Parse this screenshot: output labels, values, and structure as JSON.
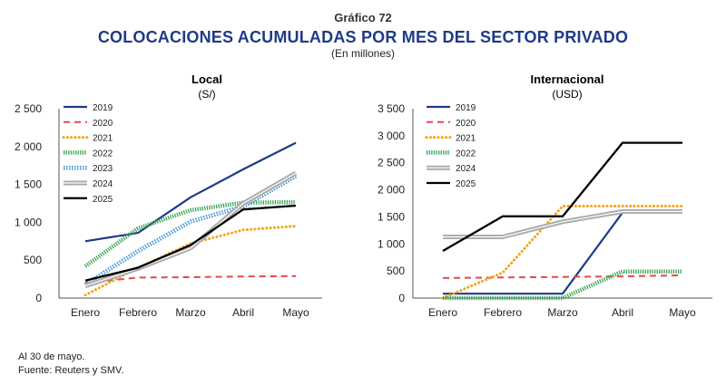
{
  "figure": {
    "label": "Gráfico 72",
    "title": "COLOCACIONES ACUMULADAS POR MES DEL SECTOR PRIVADO",
    "subtitle": "(En millones)",
    "note": "Al 30 de mayo.",
    "source": "Fuente: Reuters y SMV."
  },
  "colors": {
    "2019": "#1f3a8a",
    "2020": "#e8474c",
    "2021": "#f5a31a",
    "2022": "#3aa655",
    "2023": "#3b8fd9",
    "2024": "#a9a9a9",
    "2025": "#000000"
  },
  "chart_data": [
    {
      "type": "line",
      "title": "Local",
      "unit": "(S/)",
      "categories": [
        "Enero",
        "Febrero",
        "Marzo",
        "Abril",
        "Mayo"
      ],
      "ylim": [
        0,
        2500
      ],
      "yticks": [
        0,
        500,
        1000,
        1500,
        2000,
        2500
      ],
      "ytick_labels": [
        "0",
        "500",
        "1 000",
        "1 500",
        "2 000",
        "2 500"
      ],
      "grid": false,
      "legend": "top-left",
      "series": [
        {
          "name": "2019",
          "values": [
            750,
            860,
            1330,
            1700,
            2050
          ]
        },
        {
          "name": "2020",
          "values": [
            200,
            270,
            275,
            285,
            290
          ]
        },
        {
          "name": "2021",
          "values": [
            40,
            400,
            720,
            900,
            950
          ]
        },
        {
          "name": "2022",
          "values": [
            420,
            920,
            1160,
            1260,
            1265
          ]
        },
        {
          "name": "2023",
          "values": [
            180,
            620,
            1010,
            1210,
            1610
          ]
        },
        {
          "name": "2024",
          "values": [
            160,
            390,
            660,
            1250,
            1650
          ]
        },
        {
          "name": "2025",
          "values": [
            230,
            400,
            700,
            1170,
            1220
          ]
        }
      ]
    },
    {
      "type": "line",
      "title": "Internacional",
      "unit": "(USD)",
      "categories": [
        "Enero",
        "Febrero",
        "Marzo",
        "Abril",
        "Mayo"
      ],
      "ylim": [
        0,
        3500
      ],
      "yticks": [
        0,
        500,
        1000,
        1500,
        2000,
        2500,
        3000,
        3500
      ],
      "ytick_labels": [
        "0",
        "500",
        "1 000",
        "1 500",
        "2 000",
        "2 500",
        "3 000",
        "3 500"
      ],
      "grid": false,
      "legend": "top-left",
      "series": [
        {
          "name": "2019",
          "values": [
            80,
            80,
            80,
            1580,
            1580
          ]
        },
        {
          "name": "2020",
          "values": [
            370,
            380,
            390,
            400,
            420
          ]
        },
        {
          "name": "2021",
          "values": [
            0,
            470,
            1700,
            1700,
            1700
          ]
        },
        {
          "name": "2022",
          "values": [
            0,
            0,
            0,
            490,
            490
          ]
        },
        {
          "name": "2024",
          "values": [
            1130,
            1130,
            1410,
            1600,
            1600
          ]
        },
        {
          "name": "2025",
          "values": [
            870,
            1510,
            1510,
            2870,
            2870
          ]
        }
      ]
    }
  ]
}
